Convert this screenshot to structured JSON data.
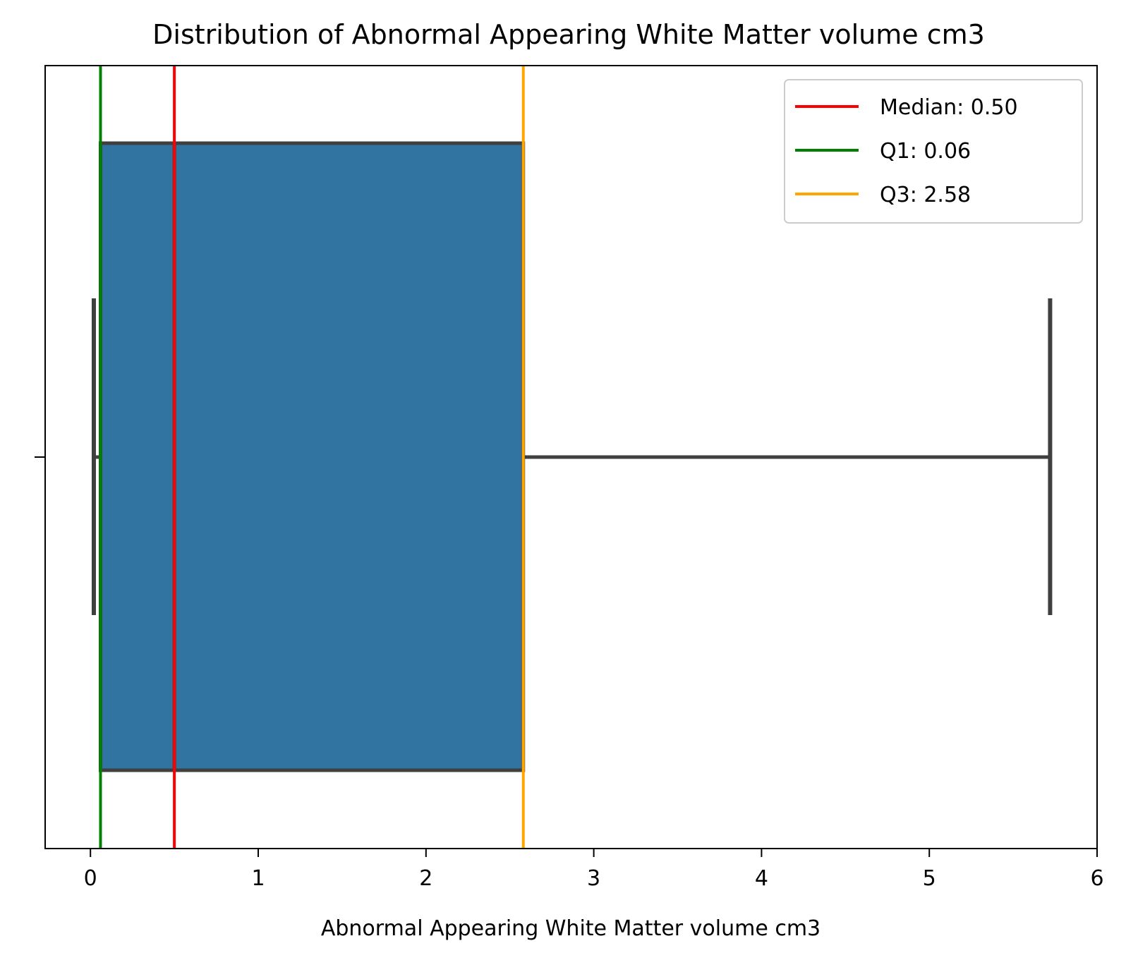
{
  "chart_data": {
    "type": "box",
    "title": "Distribution of Abnormal Appearing White Matter volume cm3",
    "xlabel": "Abnormal Appearing White Matter volume cm3",
    "ylabel": "",
    "xlim": [
      -0.27,
      6.0
    ],
    "xticks": [
      0,
      1,
      2,
      3,
      4,
      5,
      6
    ],
    "xtick_labels": [
      "0",
      "1",
      "2",
      "3",
      "4",
      "5",
      "6"
    ],
    "grid": false,
    "legend_position": "top-right",
    "box": {
      "whisker_low": 0.02,
      "q1": 0.06,
      "median": 0.5,
      "q3": 2.58,
      "whisker_high": 5.72,
      "fill_color": "#3274a1",
      "line_color": "#3f3f3f"
    },
    "reference_lines": [
      {
        "label": "Median: 0.50",
        "value": 0.5,
        "color": "#ff0000"
      },
      {
        "label": "Q1: 0.06",
        "value": 0.06,
        "color": "#008000"
      },
      {
        "label": "Q3: 2.58",
        "value": 2.58,
        "color": "#ffa500"
      }
    ]
  }
}
